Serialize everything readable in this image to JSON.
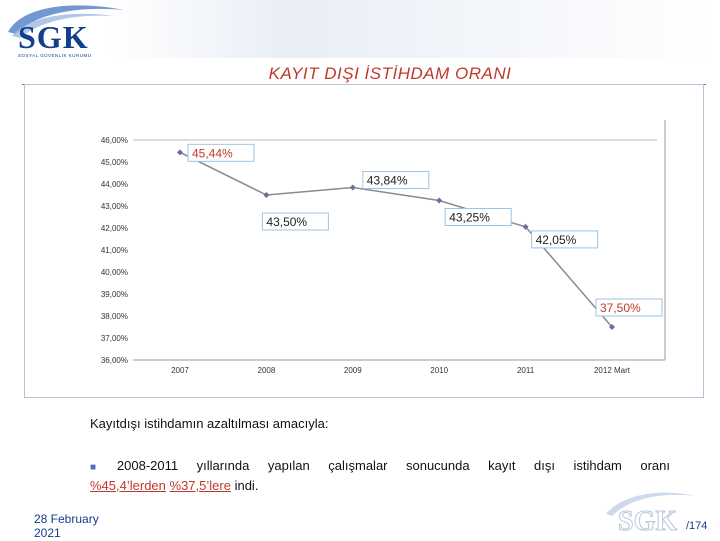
{
  "header": {
    "logo_text": "SGK",
    "logo_subtitle": "SOSYAL GÜVENLİK KURUMU",
    "title": "KAYIT DIŞI İSTİHDAM ORANI"
  },
  "body_text": {
    "intro": "Kayıtdışı istihdamın azaltılması amacıyla:",
    "bullet_prefix": "2008-2011  yıllarında  yapılan  çalışmalar  sonucunda  kayıt  dışı  istihdam  oranı",
    "from_value": "%45,4’lerden",
    "to_value": "%37,5’lere",
    "suffix": "indi."
  },
  "footer": {
    "date_line1": "28 February",
    "date_line2": "2021",
    "logo_text": "SGK",
    "page": "/174"
  },
  "colors": {
    "title_red": "#c0392b",
    "line": "#8a8a8a",
    "marker": "#6a6f9c",
    "label_border": "#9ec3e6",
    "brand_blue": "#123e8c"
  },
  "chart_data": {
    "type": "line",
    "title": "",
    "xlabel": "",
    "ylabel": "",
    "categories": [
      "2007",
      "2008",
      "2009",
      "2010",
      "2011",
      "2012 Mart"
    ],
    "values": [
      45.44,
      43.5,
      43.84,
      43.25,
      42.05,
      37.5
    ],
    "data_labels": [
      "45,44%",
      "43,50%",
      "43,84%",
      "43,25%",
      "42,05%",
      "37,50%"
    ],
    "y_ticks": [
      "36,00%",
      "37,00%",
      "38,00%",
      "39,00%",
      "40,00%",
      "41,00%",
      "42,00%",
      "43,00%",
      "44,00%",
      "45,00%",
      "46,00%"
    ],
    "ylim": [
      36,
      46
    ],
    "grid": false,
    "legend": "none"
  }
}
